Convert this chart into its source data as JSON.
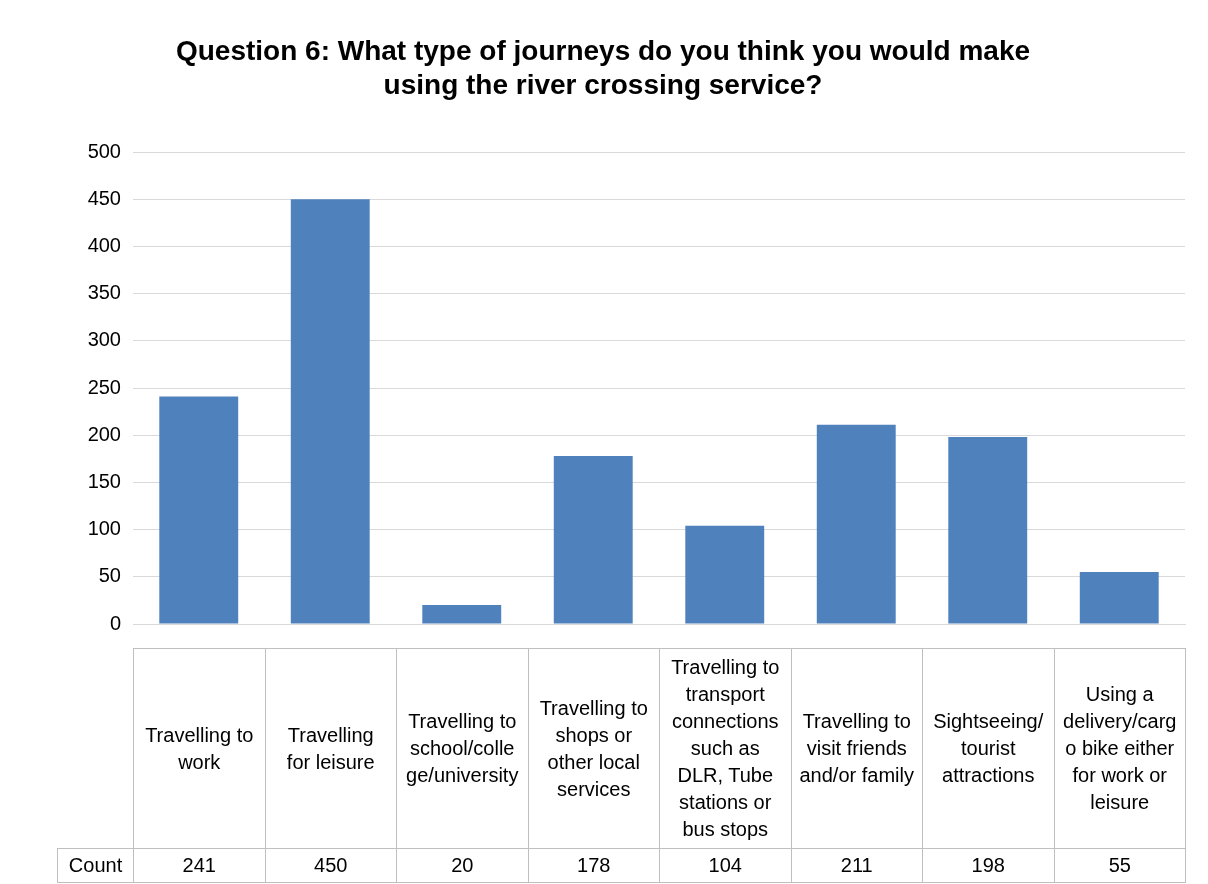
{
  "chart_data": {
    "type": "bar",
    "title": "Question 6: What type of journeys do you think you would make using the river crossing service?",
    "categories": [
      "Travelling to work",
      "Travelling for leisure",
      "Travelling to school/college/university",
      "Travelling to shops or other local services",
      "Travelling to transport connections such as DLR, Tube stations or bus stops",
      "Travelling to visit friends and/or family",
      "Sightseeing/tourist attractions",
      "Using a delivery/cargo bike either for work or leisure"
    ],
    "series": [
      {
        "name": "Count",
        "color": "#4f81bd",
        "values": [
          241,
          450,
          20,
          178,
          104,
          211,
          198,
          55
        ]
      }
    ],
    "ylim": [
      0,
      500
    ],
    "yticks": [
      0,
      50,
      100,
      150,
      200,
      250,
      300,
      350,
      400,
      450,
      500
    ],
    "grid": "y",
    "legend": false,
    "data_labels": true
  }
}
